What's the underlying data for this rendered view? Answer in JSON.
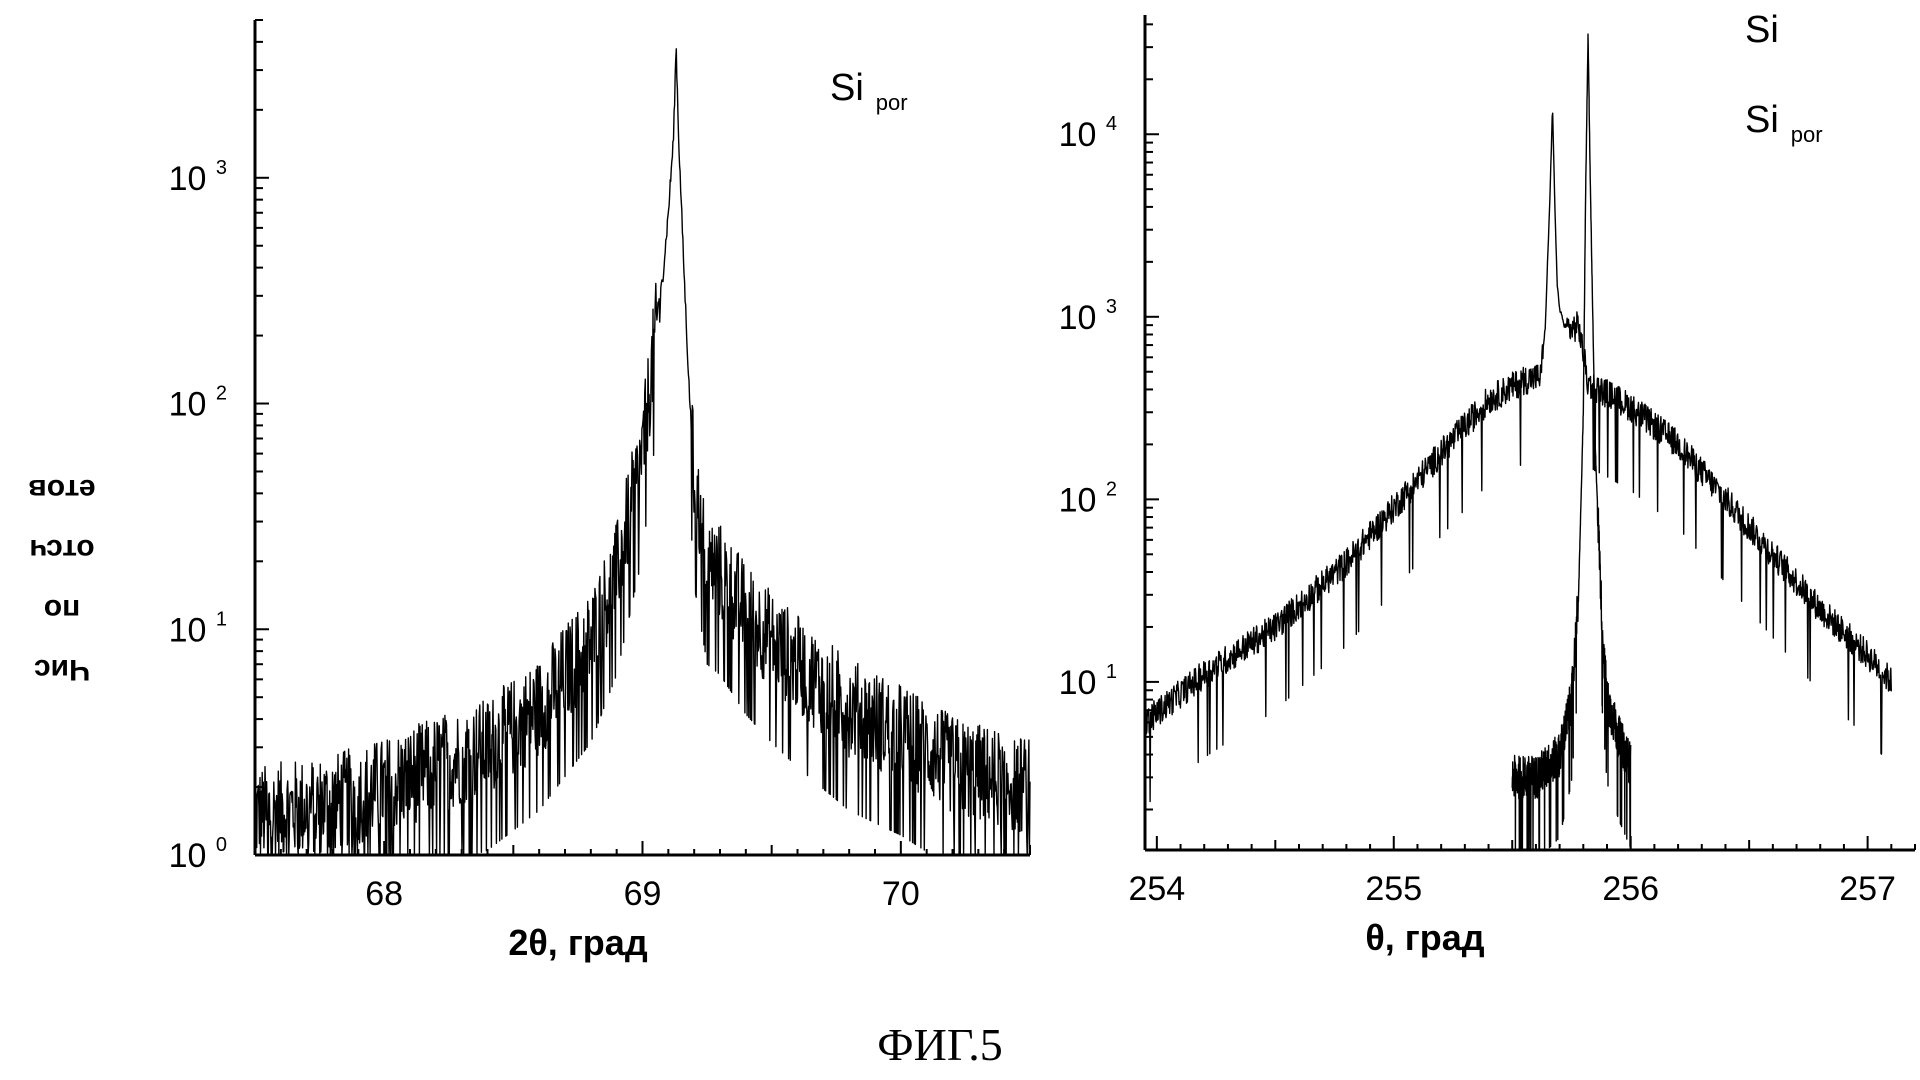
{
  "figure_caption": "ФИГ.5",
  "ylabel_lines": [
    "Чис",
    "по",
    "отсч",
    "етов"
  ],
  "chart_data": [
    {
      "type": "line",
      "xlabel": "2θ, град",
      "ylabel": "",
      "xlim": [
        67.5,
        70.5
      ],
      "ylim": [
        1,
        5000
      ],
      "yscale": "log",
      "grid": false,
      "x_ticks": [
        {
          "value": 68,
          "label": "68"
        },
        {
          "value": 69,
          "label": "69"
        },
        {
          "value": 70,
          "label": "70"
        }
      ],
      "y_ticks": [
        {
          "value": 1,
          "base": "10",
          "exp": "0"
        },
        {
          "value": 10,
          "base": "10",
          "exp": "1"
        },
        {
          "value": 100,
          "base": "10",
          "exp": "2"
        },
        {
          "value": 1000,
          "base": "10",
          "exp": "3"
        }
      ],
      "legend": [
        {
          "base": "Si",
          "sub": "por"
        }
      ],
      "legend_position": "top-right",
      "series": [
        {
          "peak_center": 69.13,
          "x": [
            67.5,
            67.8,
            68.0,
            68.2,
            68.4,
            68.6,
            68.8,
            68.9,
            69.0,
            69.05,
            69.08,
            69.1,
            69.12,
            69.13,
            69.14,
            69.16,
            69.18,
            69.2,
            69.25,
            69.3,
            69.4,
            69.5,
            69.6,
            69.8,
            70.0,
            70.2,
            70.5
          ],
          "y": [
            1.5,
            1.7,
            2,
            2.5,
            3,
            4.5,
            9,
            18,
            60,
            200,
            380,
            700,
            1500,
            3900,
            1500,
            400,
            120,
            45,
            20,
            18,
            12,
            9,
            7,
            4.5,
            3.5,
            2.5,
            2
          ]
        }
      ]
    },
    {
      "type": "line",
      "xlabel": "θ, град",
      "ylabel": "",
      "xlim": [
        253.95,
        257.2
      ],
      "ylim": [
        1.2,
        45000
      ],
      "yscale": "log",
      "grid": false,
      "x_ticks": [
        {
          "value": 254,
          "label": "254"
        },
        {
          "value": 255,
          "label": "255"
        },
        {
          "value": 256,
          "label": "256"
        },
        {
          "value": 257,
          "label": "257"
        }
      ],
      "y_ticks": [
        {
          "value": 10,
          "base": "10",
          "exp": "1"
        },
        {
          "value": 100,
          "base": "10",
          "exp": "2"
        },
        {
          "value": 1000,
          "base": "10",
          "exp": "3"
        },
        {
          "value": 10000,
          "base": "10",
          "exp": "4"
        }
      ],
      "legend": [
        {
          "base": "Si",
          "sub": ""
        },
        {
          "base": "Si",
          "sub": "por"
        }
      ],
      "legend_position": "top-right",
      "series": [
        {
          "peak_center": 255.82,
          "x": [
            255.5,
            255.6,
            255.7,
            255.75,
            255.78,
            255.8,
            255.81,
            255.82,
            255.83,
            255.85,
            255.88,
            255.9,
            255.95,
            256.0
          ],
          "y": [
            3,
            3,
            4,
            8,
            30,
            300,
            5000,
            35000,
            5000,
            200,
            20,
            8,
            5,
            3.5
          ]
        },
        {
          "peak_center": 255.68,
          "x": [
            253.95,
            254.2,
            254.5,
            254.8,
            255.0,
            255.2,
            255.4,
            255.55,
            255.62,
            255.64,
            255.66,
            255.67,
            255.68,
            255.69,
            255.7,
            255.72,
            255.75,
            255.78,
            255.82,
            255.9,
            256.0,
            256.2,
            256.4,
            256.6,
            256.8,
            257.0,
            257.1
          ],
          "y": [
            6,
            11,
            20,
            45,
            90,
            180,
            350,
            450,
            470,
            900,
            5000,
            14000,
            4000,
            1500,
            1100,
            900,
            850,
            900,
            430,
            380,
            320,
            200,
            100,
            50,
            25,
            14,
            10
          ]
        }
      ]
    }
  ]
}
